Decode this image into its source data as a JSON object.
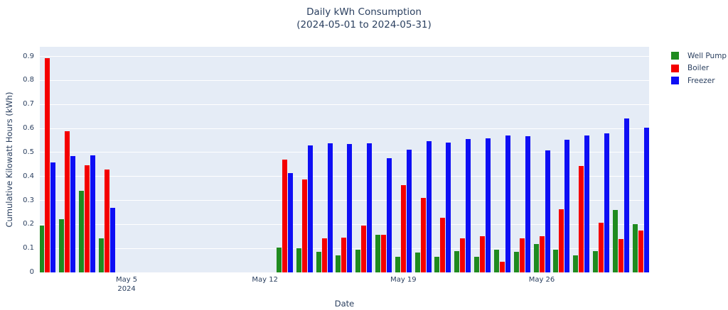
{
  "chart_data": {
    "type": "bar",
    "title": "Daily kWh Consumption",
    "subtitle": "(2024-05-01 to 2024-05-31)",
    "xlabel": "Date",
    "ylabel": "Cumulative Kilowatt Hours (kWh)",
    "x_unit": "day of May 2024",
    "ylim": [
      0,
      0.94
    ],
    "yticks": [
      0,
      0.1,
      0.2,
      0.3,
      0.4,
      0.5,
      0.6,
      0.7,
      0.8,
      0.9
    ],
    "ytick_labels": [
      "0",
      "0.1",
      "0.2",
      "0.3",
      "0.4",
      "0.5",
      "0.6",
      "0.7",
      "0.8",
      "0.9"
    ],
    "x_domain_days": [
      0.61,
      31.43
    ],
    "xticks": [
      {
        "day": 5,
        "label": "May 5",
        "sublabel": "2024"
      },
      {
        "day": 12,
        "label": "May 12"
      },
      {
        "day": 19,
        "label": "May 19"
      },
      {
        "day": 26,
        "label": "May 26"
      }
    ],
    "days": [
      1,
      2,
      3,
      4,
      13,
      14,
      15,
      16,
      17,
      18,
      19,
      20,
      21,
      22,
      23,
      24,
      25,
      26,
      27,
      28,
      29,
      30,
      31
    ],
    "series": [
      {
        "name": "Well Pump",
        "color": "#1f8b1f",
        "values": [
          0.195,
          0.221,
          0.34,
          0.143,
          0.103,
          0.1,
          0.085,
          0.072,
          0.095,
          0.156,
          0.065,
          0.082,
          0.065,
          0.09,
          0.065,
          0.094,
          0.085,
          0.118,
          0.094,
          0.072,
          0.09,
          0.26,
          0.201
        ]
      },
      {
        "name": "Boiler",
        "color": "#f40000",
        "values": [
          0.893,
          0.588,
          0.447,
          0.428,
          0.47,
          0.387,
          0.142,
          0.146,
          0.196,
          0.158,
          0.365,
          0.311,
          0.229,
          0.141,
          0.15,
          0.045,
          0.141,
          0.151,
          0.262,
          0.442,
          0.208,
          0.139,
          0.173
        ]
      },
      {
        "name": "Freezer",
        "color": "#0e0ef4",
        "values": [
          0.458,
          0.485,
          0.487,
          0.268,
          0.415,
          0.528,
          0.539,
          0.535,
          0.537,
          0.477,
          0.512,
          0.548,
          0.542,
          0.557,
          0.56,
          0.571,
          0.568,
          0.508,
          0.552,
          0.57,
          0.579,
          0.64,
          0.603
        ]
      }
    ],
    "legend_position": "top-right-outside",
    "grid": "horizontal",
    "plot_bg": "#e5ecf6",
    "grid_color": "#ffffff",
    "text_color": "#2a3f5f"
  }
}
